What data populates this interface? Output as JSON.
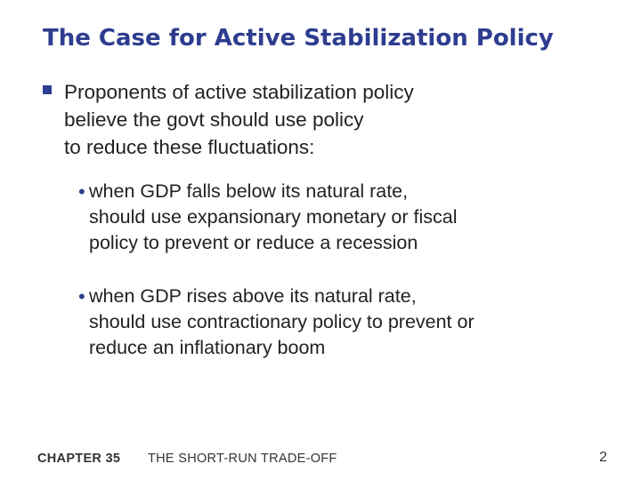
{
  "slide": {
    "title": "The Case for Active Stabilization Policy",
    "main_bullet": {
      "lines": [
        "Proponents of active stabilization policy",
        "believe the govt should use policy",
        "to reduce these fluctuations:"
      ]
    },
    "sub_bullets": [
      {
        "lines": [
          "when GDP falls below its natural rate,",
          "should use expansionary monetary or fiscal",
          "policy to prevent or reduce a recession"
        ]
      },
      {
        "lines": [
          "when GDP rises above its natural rate,",
          "should use contractionary policy to prevent or",
          "reduce an inflationary boom"
        ]
      }
    ]
  },
  "footer": {
    "chapter": "CHAPTER 35",
    "chapter_title": "THE SHORT-RUN TRADE-OFF",
    "page_number": "2"
  },
  "colors": {
    "accent": "#2e3d8f",
    "text": "#222222"
  },
  "icons": {
    "main_bullet": "square-bullet-icon",
    "sub_bullet": "dot-bullet-icon"
  }
}
